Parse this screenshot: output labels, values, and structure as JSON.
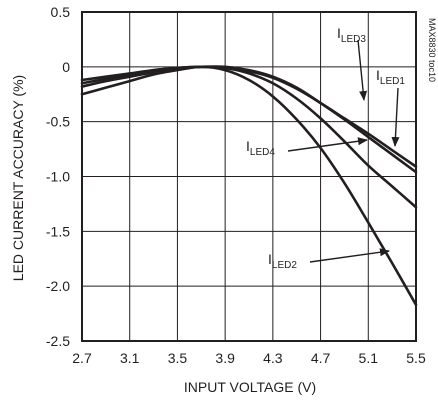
{
  "chart_data": {
    "type": "line",
    "title": "",
    "xlabel": "INPUT VOLTAGE (V)",
    "ylabel": "LED CURRENT ACCURACY (%)",
    "xlim": [
      2.7,
      5.5
    ],
    "ylim": [
      -2.5,
      0.5
    ],
    "xticks": [
      2.7,
      3.1,
      3.5,
      3.9,
      4.3,
      4.7,
      5.1,
      5.5
    ],
    "xtick_labels": [
      "2.7",
      "3.1",
      "3.5",
      "3.9",
      "4.3",
      "4.7",
      "5.1",
      "5.5"
    ],
    "yticks": [
      0.5,
      0,
      -0.5,
      -1.0,
      -1.5,
      -2.0,
      -2.5
    ],
    "ytick_labels": [
      "0.5",
      "0",
      "-0.5",
      "-1.0",
      "-1.5",
      "-2.0",
      "-2.5"
    ],
    "grid": true,
    "figure_code": "MAX8830 toc10",
    "series": [
      {
        "name": "ILED1",
        "x": [
          2.7,
          2.9,
          3.1,
          3.3,
          3.5,
          3.7,
          3.9,
          4.1,
          4.3,
          4.5,
          4.7,
          4.9,
          5.1,
          5.3,
          5.5
        ],
        "y": [
          -0.12,
          -0.09,
          -0.06,
          -0.03,
          -0.01,
          0.0,
          -0.01,
          -0.04,
          -0.1,
          -0.2,
          -0.33,
          -0.47,
          -0.61,
          -0.76,
          -0.91
        ]
      },
      {
        "name": "ILED2",
        "x": [
          2.7,
          2.9,
          3.1,
          3.3,
          3.5,
          3.7,
          3.9,
          4.1,
          4.3,
          4.5,
          4.7,
          4.9,
          5.1,
          5.3,
          5.5
        ],
        "y": [
          -0.25,
          -0.19,
          -0.13,
          -0.07,
          -0.03,
          0.0,
          -0.03,
          -0.12,
          -0.27,
          -0.48,
          -0.74,
          -1.06,
          -1.42,
          -1.79,
          -2.17
        ]
      },
      {
        "name": "ILED3",
        "x": [
          2.7,
          2.9,
          3.1,
          3.3,
          3.5,
          3.7,
          3.9,
          4.1,
          4.3,
          4.5,
          4.7,
          4.9,
          5.1,
          5.3,
          5.5
        ],
        "y": [
          -0.15,
          -0.11,
          -0.07,
          -0.03,
          -0.01,
          0.0,
          0.0,
          -0.03,
          -0.09,
          -0.19,
          -0.33,
          -0.48,
          -0.64,
          -0.8,
          -0.96
        ]
      },
      {
        "name": "ILED4",
        "x": [
          2.7,
          2.9,
          3.1,
          3.3,
          3.5,
          3.7,
          3.9,
          4.1,
          4.3,
          4.5,
          4.7,
          4.9,
          5.1,
          5.3,
          5.5
        ],
        "y": [
          -0.18,
          -0.13,
          -0.09,
          -0.05,
          -0.02,
          0.0,
          -0.01,
          -0.06,
          -0.15,
          -0.29,
          -0.47,
          -0.68,
          -0.9,
          -1.09,
          -1.28
        ]
      }
    ],
    "annotations": [
      {
        "main": "I",
        "sub": "LED3",
        "series": "ILED3"
      },
      {
        "main": "I",
        "sub": "LED1",
        "series": "ILED1"
      },
      {
        "main": "I",
        "sub": "LED4",
        "series": "ILED4"
      },
      {
        "main": "I",
        "sub": "LED2",
        "series": "ILED2"
      }
    ]
  },
  "colors": {
    "line": "#231f20",
    "grid": "#231f20",
    "background": "#ffffff"
  }
}
